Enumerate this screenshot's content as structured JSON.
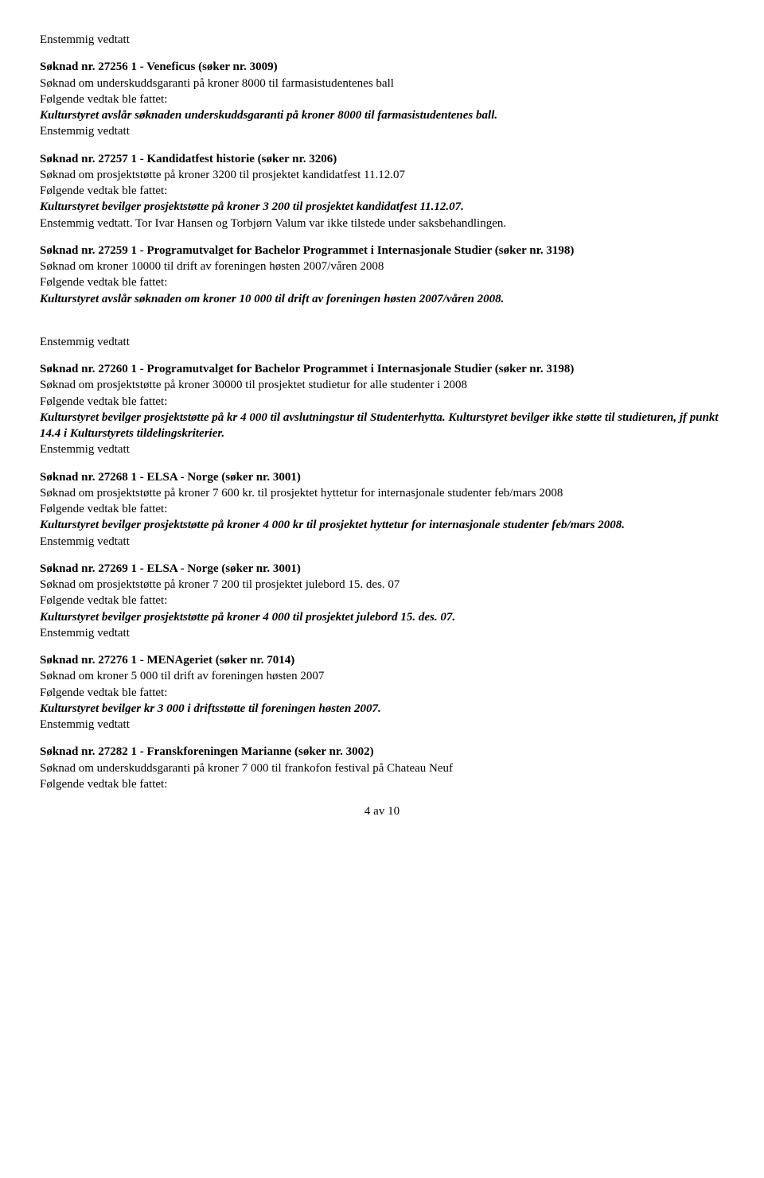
{
  "items": [
    {
      "heading": "Søknad nr. 27256  1  - Veneficus (søker nr. 3009)",
      "desc": "Søknad om underskuddsgaranti på kroner 8000 til farmasistudentenes ball",
      "pre": "Enstemmig vedtatt",
      "vedtak_label": " Følgende vedtak ble fattet:",
      "resolution": "Kulturstyret avslår søknaden underskuddsgaranti på kroner 8000 til farmasistudentenes ball.",
      "post": "Enstemmig vedtatt"
    },
    {
      "heading": "Søknad nr. 27257  1  - Kandidatfest historie (søker nr. 3206)",
      "desc": "Søknad om prosjektstøtte på kroner 3200 til prosjektet kandidatfest 11.12.07",
      "vedtak_label": " Følgende vedtak ble fattet:",
      "resolution": "Kulturstyret bevilger prosjektstøtte på kroner 3 200 til prosjektet kandidatfest 11.12.07.",
      "post": "Enstemmig vedtatt. Tor Ivar Hansen og Torbjørn Valum var ikke tilstede under saksbehandlingen."
    },
    {
      "heading": "Søknad nr. 27259  1  - Programutvalget for Bachelor Programmet i Internasjonale Studier (søker nr. 3198)",
      "desc": "Søknad om kroner 10000 til drift av foreningen høsten 2007/våren 2008",
      "vedtak_label": " Følgende vedtak ble fattet:",
      "resolution": "Kulturstyret avslår søknaden om kroner 10 000 til drift av foreningen høsten 2007/våren 2008.",
      "post_spaced": "Enstemmig vedtatt"
    },
    {
      "heading": "Søknad nr. 27260  1  - Programutvalget for Bachelor Programmet i Internasjonale Studier (søker nr. 3198)",
      "desc": "Søknad om prosjektstøtte på kroner 30000 til prosjektet studietur for alle studenter i 2008",
      "vedtak_label": " Følgende vedtak ble fattet:",
      "resolution": "Kulturstyret bevilger prosjektstøtte på kr 4 000 til avslutningstur til Studenterhytta. Kulturstyret bevilger ikke støtte til studieturen, jf punkt 14.4 i Kulturstyrets tildelingskriterier.",
      "post": "Enstemmig vedtatt"
    },
    {
      "heading": "Søknad nr. 27268  1  - ELSA - Norge (søker nr. 3001)",
      "desc": "Søknad om prosjektstøtte på kroner 7 600 kr. til prosjektet hyttetur for internasjonale studenter feb/mars 2008",
      "vedtak_label": " Følgende vedtak ble fattet:",
      "resolution": "Kulturstyret bevilger prosjektstøtte på kroner 4  000 kr til prosjektet hyttetur for internasjonale studenter feb/mars 2008.",
      "post": "Enstemmig vedtatt"
    },
    {
      "heading": "Søknad nr. 27269  1  - ELSA - Norge (søker nr. 3001)",
      "desc": "Søknad om prosjektstøtte på kroner 7 200 til prosjektet julebord 15. des. 07",
      "vedtak_label": " Følgende vedtak ble fattet:",
      "resolution": "Kulturstyret bevilger prosjektstøtte på kroner 4 000 til prosjektet julebord 15. des. 07.",
      "post": "Enstemmig vedtatt"
    },
    {
      "heading": "Søknad nr. 27276  1  - MENAgeriet (søker nr. 7014)",
      "desc": "Søknad om kroner 5 000  til drift av foreningen høsten 2007",
      "vedtak_label": " Følgende vedtak ble fattet:",
      "resolution": "Kulturstyret bevilger kr 3 000 i driftsstøtte til foreningen høsten 2007.",
      "post": "Enstemmig vedtatt"
    },
    {
      "heading": "Søknad nr. 27282  1  - Franskforeningen Marianne (søker nr. 3002)",
      "desc": "Søknad om underskuddsgaranti på kroner 7 000 til frankofon festival på Chateau Neuf",
      "vedtak_label": " Følgende vedtak ble fattet:"
    }
  ],
  "page_number": "4 av 10"
}
